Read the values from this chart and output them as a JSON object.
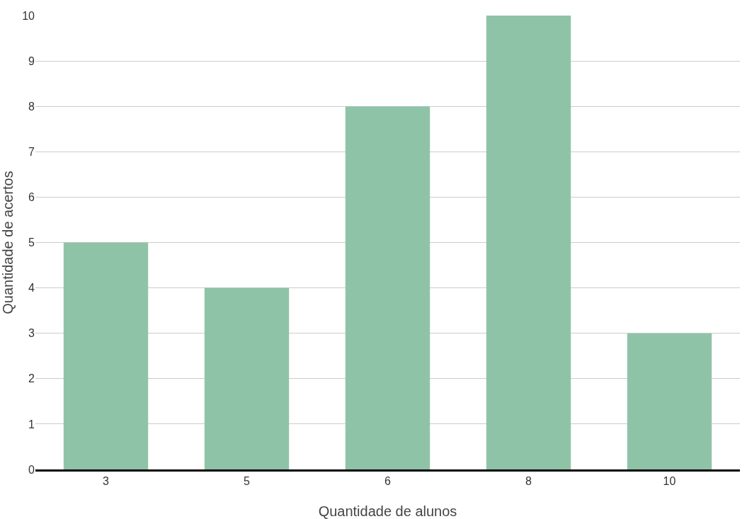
{
  "chart_data": {
    "type": "bar",
    "xlabel": "Quantidade de alunos",
    "ylabel": "Quantidade de acertos",
    "categories": [
      "3",
      "5",
      "6",
      "8",
      "10"
    ],
    "values": [
      5,
      4,
      8,
      10,
      3
    ],
    "color": "#8fc3a7",
    "ylim": [
      0,
      10
    ],
    "yticks": [
      0,
      1,
      2,
      3,
      4,
      5,
      6,
      7,
      8,
      9,
      10
    ],
    "grid": "y"
  }
}
